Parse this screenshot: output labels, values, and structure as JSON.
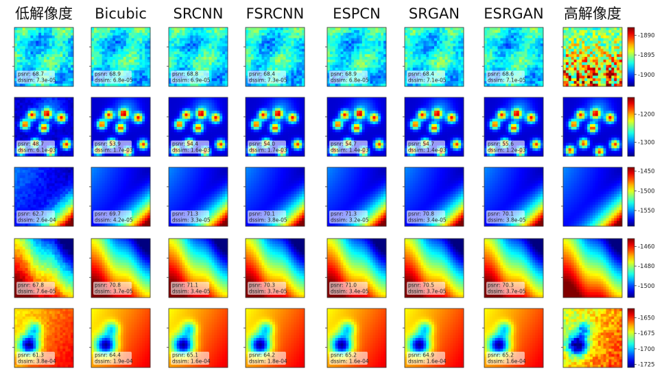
{
  "chart_data": {
    "type": "heatmap",
    "columns": [
      "低解像度",
      "Bicubic",
      "SRCNN",
      "FSRCNN",
      "ESPCN",
      "SRGAN",
      "ESRGAN",
      "高解像度"
    ],
    "colormap": "jet",
    "rows": [
      {
        "pattern": "noise",
        "colorbar_ticks": [
          "-1890",
          "-1895",
          "-1900"
        ],
        "colorbar_range": [
          -1903,
          -1888
        ],
        "stats": [
          {
            "psnr": "psnr: 68.7",
            "dssim": "dssim: 7.3e-05"
          },
          {
            "psnr": "psnr: 68.9",
            "dssim": "dssim: 6.8e-05"
          },
          {
            "psnr": "psnr: 68.8",
            "dssim": "dssim: 6.9e-05"
          },
          {
            "psnr": "psnr: 68.4",
            "dssim": "dssim: 7.3e-05"
          },
          {
            "psnr": "psnr: 68.9",
            "dssim": "dssim: 6.8e-05"
          },
          {
            "psnr": "psnr: 68.4",
            "dssim": "dssim: 7.1e-05"
          },
          {
            "psnr": "psnr: 68.6",
            "dssim": "dssim: 7.1e-05"
          }
        ]
      },
      {
        "pattern": "blobs",
        "colorbar_ticks": [
          "-1200",
          "-1300"
        ],
        "colorbar_range": [
          -1350,
          -1140
        ],
        "stats": [
          {
            "psnr": "psnr: 48.7",
            "dssim": "dssim: 6.1e-03"
          },
          {
            "psnr": "psnr: 53.9",
            "dssim": "dssim: 1.7e-03"
          },
          {
            "psnr": "psnr: 54.4",
            "dssim": "dssim: 1.6e-03"
          },
          {
            "psnr": "psnr: 54.0",
            "dssim": "dssim: 1.7e-03"
          },
          {
            "psnr": "psnr: 54.7",
            "dssim": "dssim: 1.4e-03"
          },
          {
            "psnr": "psnr: 54.7",
            "dssim": "dssim: 1.4e-03"
          },
          {
            "psnr": "psnr: 55.6",
            "dssim": "dssim: 1.2e-03"
          }
        ]
      },
      {
        "pattern": "gradient-br",
        "colorbar_ticks": [
          "-1450",
          "-1500",
          "-1550"
        ],
        "colorbar_range": [
          -1590,
          -1440
        ],
        "stats": [
          {
            "psnr": "psnr: 62.7",
            "dssim": "dssim: 2.6e-04"
          },
          {
            "psnr": "psnr: 69.7",
            "dssim": "dssim: 4.2e-05"
          },
          {
            "psnr": "psnr: 71.3",
            "dssim": "dssim: 3.3e-05"
          },
          {
            "psnr": "psnr: 70.1",
            "dssim": "dssim: 3.8e-05"
          },
          {
            "psnr": "psnr: 71.3",
            "dssim": "dssim: 3.2e-05"
          },
          {
            "psnr": "psnr: 70.8",
            "dssim": "dssim: 3.4e-05"
          },
          {
            "psnr": "psnr: 70.1",
            "dssim": "dssim: 3.8e-05"
          }
        ]
      },
      {
        "pattern": "gradient-diag",
        "colorbar_ticks": [
          "-1460",
          "-1480",
          "-1500"
        ],
        "colorbar_range": [
          -1512,
          -1452
        ],
        "stats": [
          {
            "psnr": "psnr: 67.8",
            "dssim": "dssim: 7.6e-05"
          },
          {
            "psnr": "psnr: 70.8",
            "dssim": "dssim: 3.7e-05"
          },
          {
            "psnr": "psnr: 71.1",
            "dssim": "dssim: 3.4e-05"
          },
          {
            "psnr": "psnr: 70.3",
            "dssim": "dssim: 3.7e-05"
          },
          {
            "psnr": "psnr: 71.0",
            "dssim": "dssim: 3.4e-05"
          },
          {
            "psnr": "psnr: 70.5",
            "dssim": "dssim: 3.7e-05"
          },
          {
            "psnr": "psnr: 70.3",
            "dssim": "dssim: 3.7e-05"
          }
        ]
      },
      {
        "pattern": "warm",
        "colorbar_ticks": [
          "-1650",
          "-1675",
          "-1700",
          "-1725"
        ],
        "colorbar_range": [
          -1730,
          -1635
        ],
        "stats": [
          {
            "psnr": "psnr: 61.3",
            "dssim": "dssim: 3.8e-04"
          },
          {
            "psnr": "psnr: 64.4",
            "dssim": "dssim: 1.9e-04"
          },
          {
            "psnr": "psnr: 65.1",
            "dssim": "dssim: 1.6e-04"
          },
          {
            "psnr": "psnr: 64.2",
            "dssim": "dssim: 1.8e-04"
          },
          {
            "psnr": "psnr: 65.2",
            "dssim": "dssim: 1.6e-04"
          },
          {
            "psnr": "psnr: 64.9",
            "dssim": "dssim: 1.6e-04"
          },
          {
            "psnr": "psnr: 65.2",
            "dssim": "dssim: 1.6e-04"
          }
        ]
      }
    ]
  }
}
